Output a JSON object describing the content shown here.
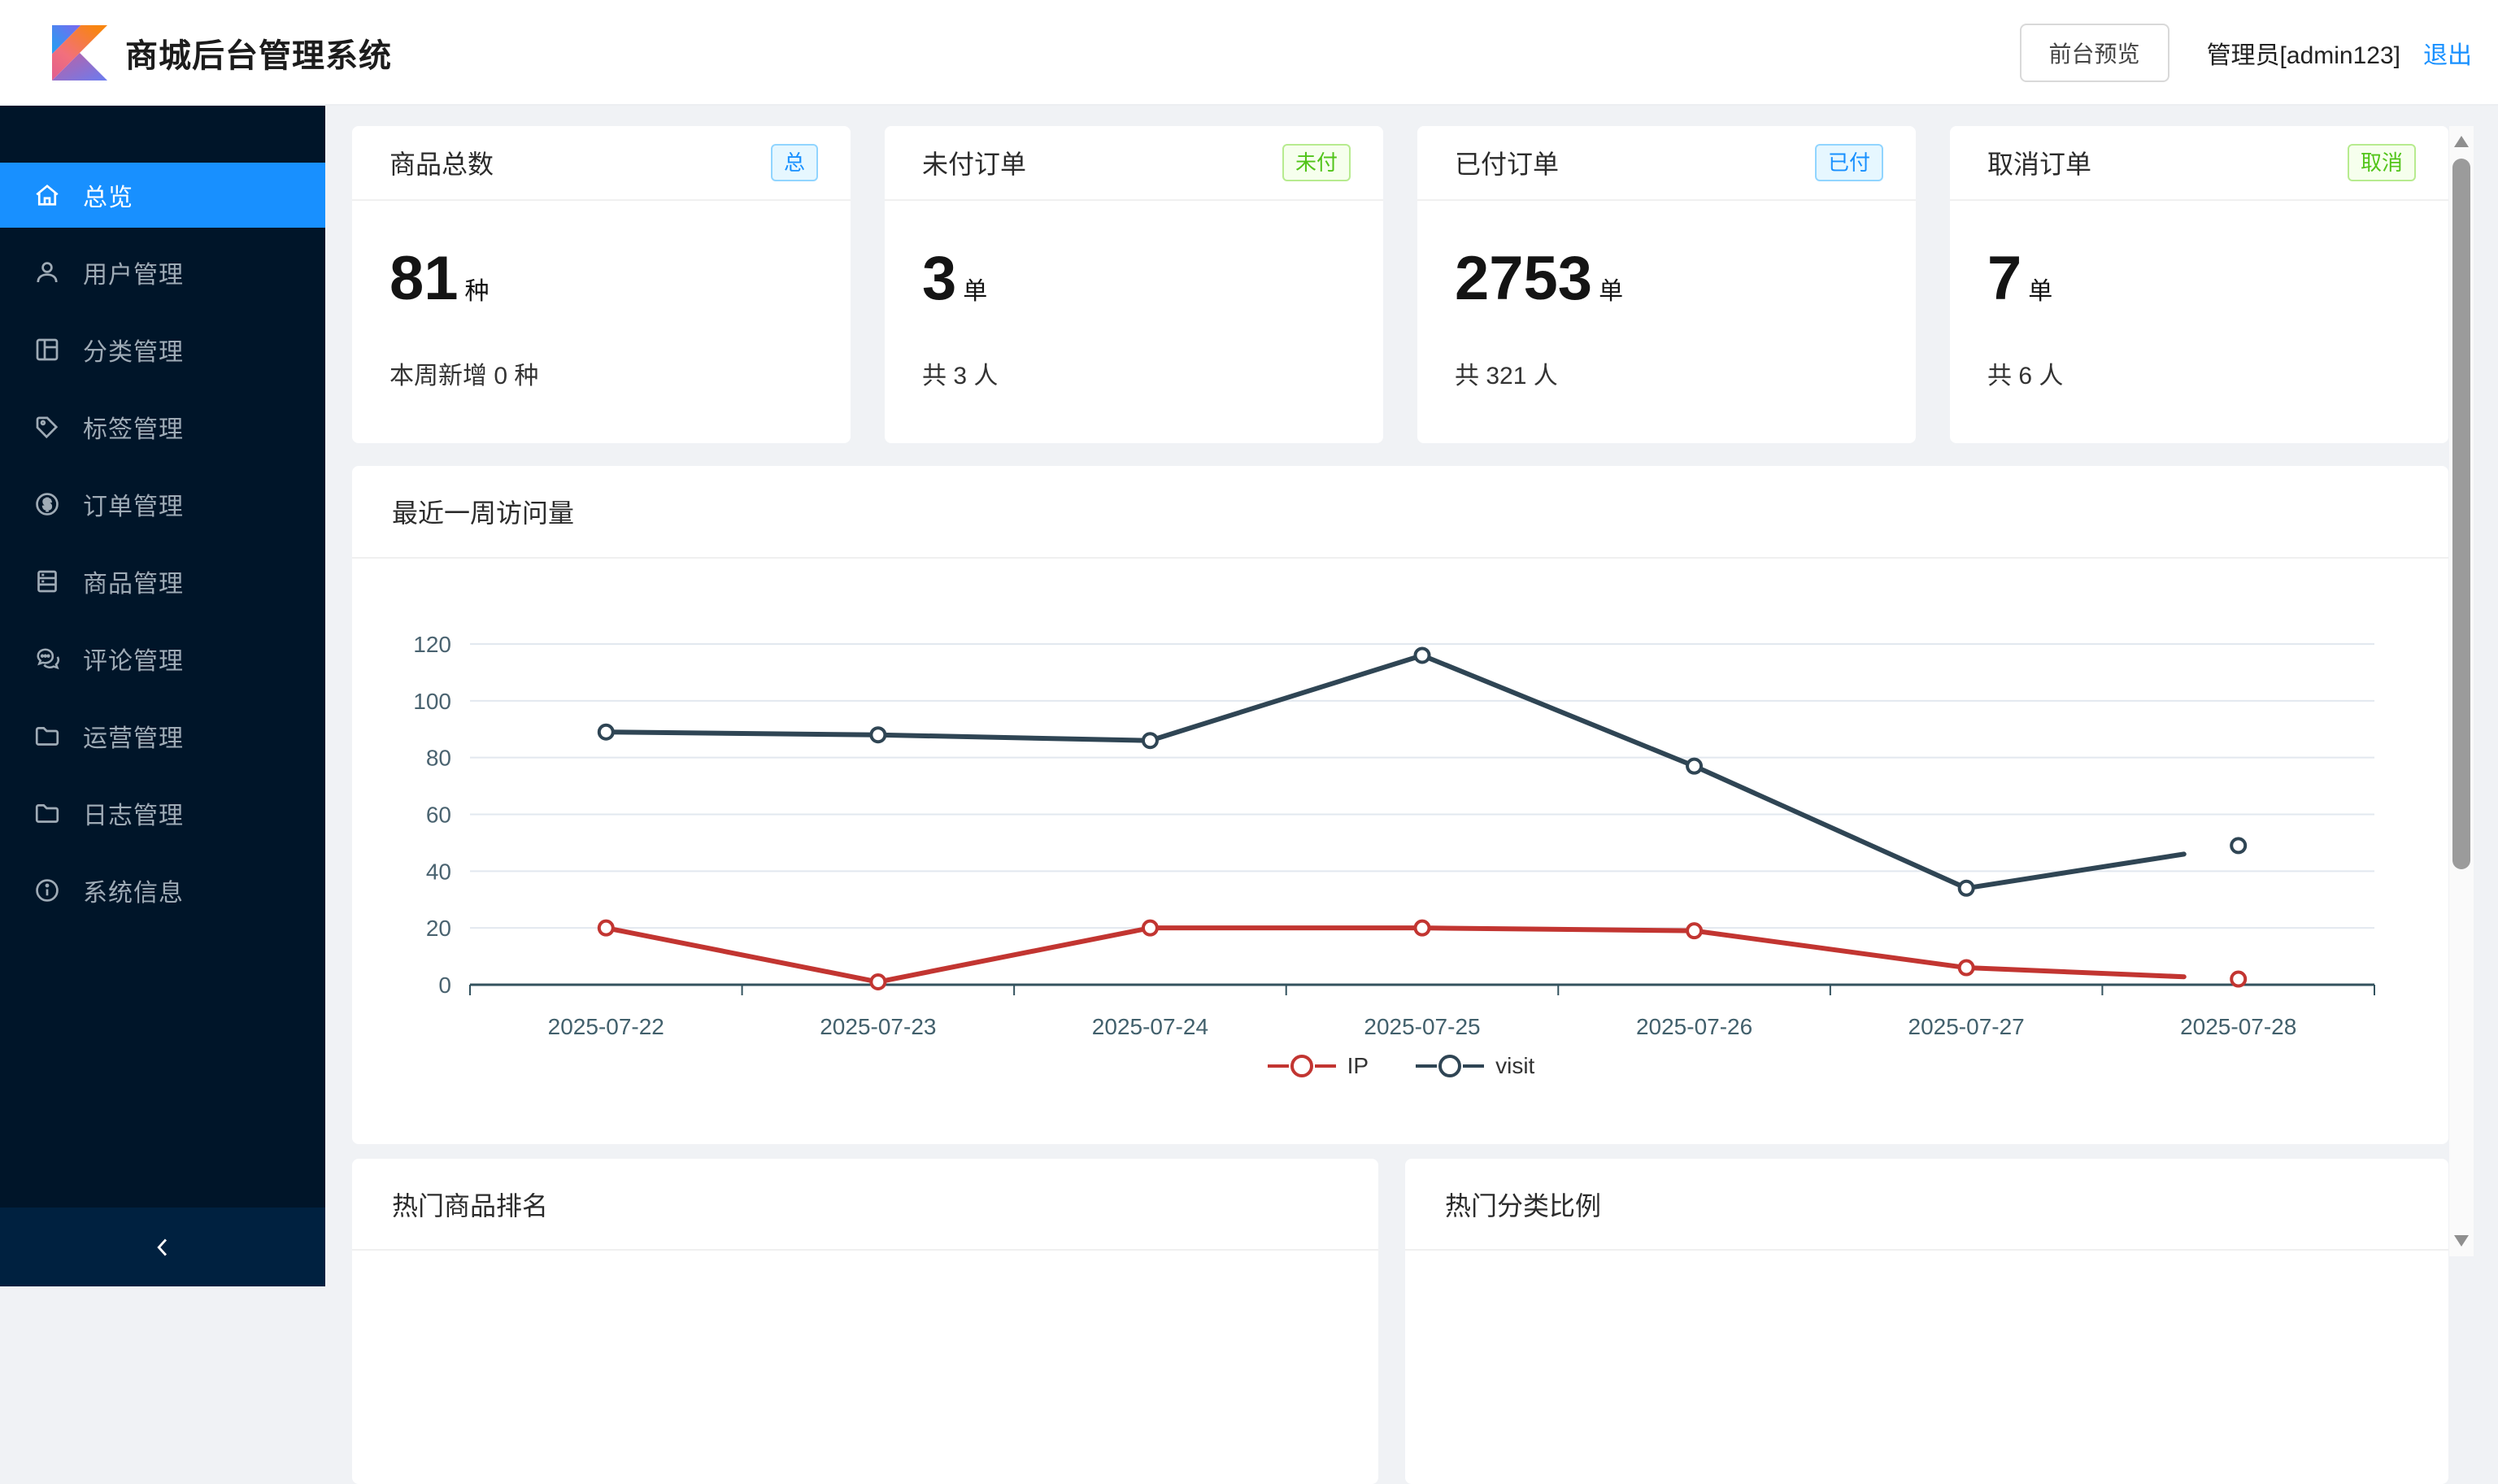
{
  "header": {
    "title": "商城后台管理系统",
    "preview_button": "前台预览",
    "user": "管理员[admin123]",
    "logout": "退出"
  },
  "sidebar": {
    "items": [
      {
        "label": "总览",
        "icon": "home-icon",
        "active": true,
        "expandable": false
      },
      {
        "label": "用户管理",
        "icon": "user-icon",
        "active": false,
        "expandable": false
      },
      {
        "label": "分类管理",
        "icon": "category-icon",
        "active": false,
        "expandable": false
      },
      {
        "label": "标签管理",
        "icon": "tag-icon",
        "active": false,
        "expandable": false
      },
      {
        "label": "订单管理",
        "icon": "order-icon",
        "active": false,
        "expandable": false
      },
      {
        "label": "商品管理",
        "icon": "product-icon",
        "active": false,
        "expandable": false
      },
      {
        "label": "评论管理",
        "icon": "comment-icon",
        "active": false,
        "expandable": false
      },
      {
        "label": "运营管理",
        "icon": "folder-icon",
        "active": false,
        "expandable": true
      },
      {
        "label": "日志管理",
        "icon": "folder-icon",
        "active": false,
        "expandable": true
      },
      {
        "label": "系统信息",
        "icon": "info-icon",
        "active": false,
        "expandable": false
      }
    ]
  },
  "stat_cards": [
    {
      "title": "商品总数",
      "badge": "总",
      "badge_color": "blue",
      "value": "81",
      "unit": "种",
      "footnote": "本周新增 0 种"
    },
    {
      "title": "未付订单",
      "badge": "未付",
      "badge_color": "green",
      "value": "3",
      "unit": "单",
      "footnote": "共 3 人"
    },
    {
      "title": "已付订单",
      "badge": "已付",
      "badge_color": "blue",
      "value": "2753",
      "unit": "单",
      "footnote": "共 321 人"
    },
    {
      "title": "取消订单",
      "badge": "取消",
      "badge_color": "green",
      "value": "7",
      "unit": "单",
      "footnote": "共 6 人"
    }
  ],
  "chart_card": {
    "title": "最近一周访问量"
  },
  "chart_data": {
    "type": "line",
    "title": "最近一周访问量",
    "categories": [
      "2025-07-22",
      "2025-07-23",
      "2025-07-24",
      "2025-07-25",
      "2025-07-26",
      "2025-07-27",
      "2025-07-28"
    ],
    "series": [
      {
        "name": "IP",
        "color": "#c23531",
        "values": [
          20,
          1,
          20,
          20,
          19,
          6,
          2
        ]
      },
      {
        "name": "visit",
        "color": "#2f4554",
        "values": [
          89,
          88,
          86,
          116,
          77,
          34,
          49
        ]
      }
    ],
    "ylim": [
      0,
      120
    ],
    "ytick_step": 20,
    "grid": true,
    "legend": [
      "IP",
      "visit"
    ],
    "legend_position": "bottom",
    "note": "last segment of each line is drawn only partially toward 2025-07-28; markers at 2025-07-28 are detached"
  },
  "bottom_cards": [
    {
      "title": "热门商品排名"
    },
    {
      "title": "热门分类比例"
    }
  ],
  "colors": {
    "accent": "#1890ff",
    "sidebar_bg": "#001529",
    "sidebar_collapse_bg": "#002140",
    "page_bg": "#f0f2f5",
    "status_blue": "#1890ff",
    "status_green": "#52c41a",
    "series_ip": "#c23531",
    "series_visit": "#2f4554"
  }
}
